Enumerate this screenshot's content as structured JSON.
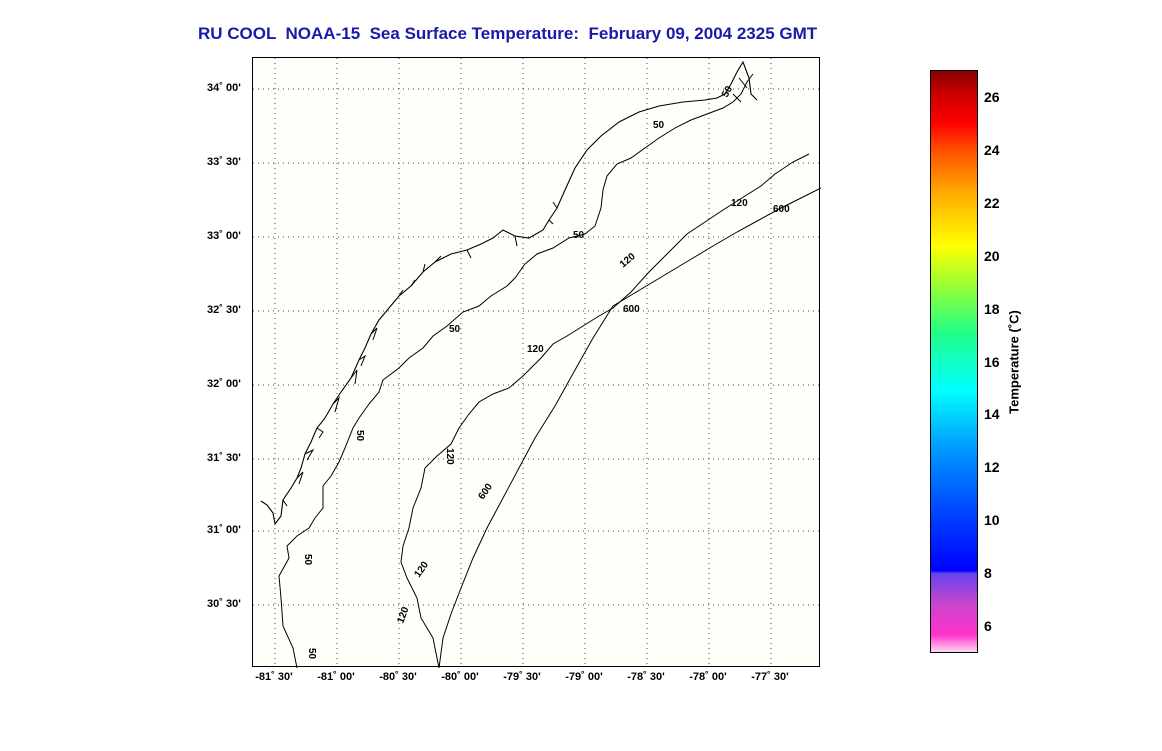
{
  "title": "RU COOL  NOAA-15  Sea Surface Temperature:  February 09, 2004 2325 GMT",
  "map": {
    "lat_labels": [
      "34˚ 00'",
      "33˚ 30'",
      "33˚ 00'",
      "32˚ 30'",
      "32˚ 00'",
      "31˚ 30'",
      "31˚ 00'",
      "30˚ 30'"
    ],
    "lon_labels": [
      "-81˚ 30'",
      "-81˚ 00'",
      "-80˚ 30'",
      "-80˚ 00'",
      "-79˚ 30'",
      "-79˚ 00'",
      "-78˚ 30'",
      "-78˚ 00'",
      "-77˚ 30'"
    ],
    "contour_levels": [
      "50",
      "120",
      "600"
    ],
    "grid": "dotted",
    "line_color": "#000000"
  },
  "colorbar": {
    "label": "Temperature (˚C)",
    "ticks": [
      "26",
      "24",
      "22",
      "20",
      "18",
      "16",
      "14",
      "12",
      "10",
      "8",
      "6"
    ],
    "range": [
      5,
      27
    ],
    "colors": [
      "#ff33cc",
      "#0000ff",
      "#00ffff",
      "#ffff00",
      "#ff0000",
      "#880000"
    ]
  }
}
